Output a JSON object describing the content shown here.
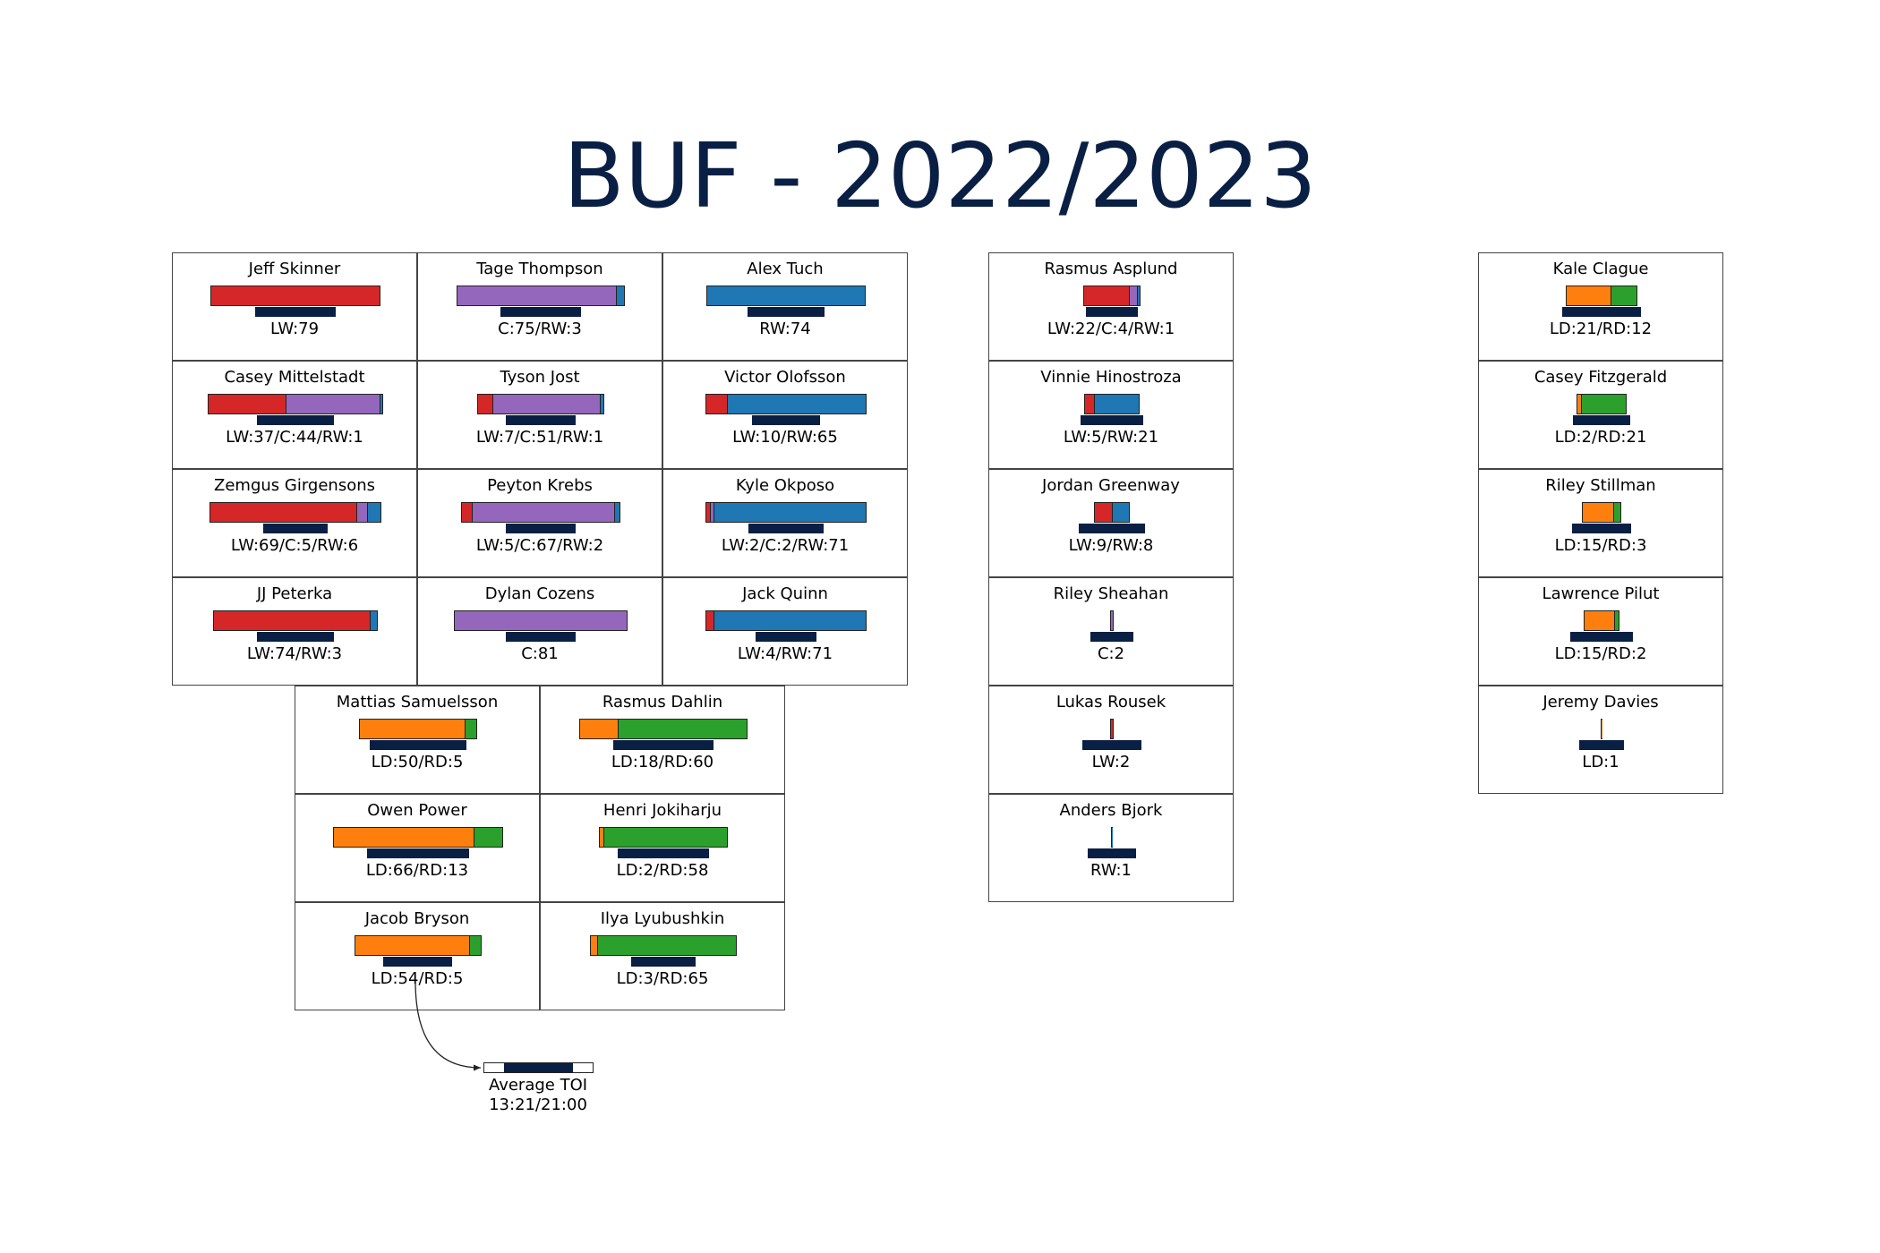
{
  "title": "BUF - 2022/2023",
  "colors": {
    "LW": "#d62728",
    "C": "#9467bd",
    "RW": "#1f77b4",
    "LD": "#ff7f0e",
    "RD": "#2ca02c",
    "toi": "#0a1f44",
    "title": "#0a1f44"
  },
  "scale": {
    "games_max": 82,
    "toi_min_minutes": 0,
    "toi_max_minutes": 21
  },
  "legend": {
    "label": "Average TOI",
    "range": "13:21/21:00",
    "toi_fill_start_minutes": 3.8,
    "toi_fill_end_minutes": 17.2
  },
  "groups": [
    {
      "name": "forwards",
      "players": [
        {
          "name": "Jeff Skinner",
          "stat": "LW:79",
          "positions": [
            [
              "LW",
              79
            ]
          ],
          "toi_minutes": 17.8
        },
        {
          "name": "Tage Thompson",
          "stat": "C:75/RW:3",
          "positions": [
            [
              "C",
              75
            ],
            [
              "RW",
              3
            ]
          ],
          "toi_minutes": 17.5
        },
        {
          "name": "Alex Tuch",
          "stat": "RW:74",
          "positions": [
            [
              "RW",
              74
            ]
          ],
          "toi_minutes": 17.0
        },
        {
          "name": "Casey Mittelstadt",
          "stat": "LW:37/C:44/RW:1",
          "positions": [
            [
              "LW",
              37
            ],
            [
              "C",
              44
            ],
            [
              "RW",
              1
            ]
          ],
          "toi_minutes": 17.0
        },
        {
          "name": "Tyson Jost",
          "stat": "LW:7/C:51/RW:1",
          "positions": [
            [
              "LW",
              7
            ],
            [
              "C",
              51
            ],
            [
              "RW",
              1
            ]
          ],
          "toi_minutes": 15.2
        },
        {
          "name": "Victor Olofsson",
          "stat": "LW:10/RW:65",
          "positions": [
            [
              "LW",
              10
            ],
            [
              "RW",
              65
            ]
          ],
          "toi_minutes": 14.9
        },
        {
          "name": "Zemgus Girgensons",
          "stat": "LW:69/C:5/RW:6",
          "positions": [
            [
              "LW",
              69
            ],
            [
              "C",
              5
            ],
            [
              "RW",
              6
            ]
          ],
          "toi_minutes": 14.1
        },
        {
          "name": "Peyton Krebs",
          "stat": "LW:5/C:67/RW:2",
          "positions": [
            [
              "LW",
              5
            ],
            [
              "C",
              67
            ],
            [
              "RW",
              2
            ]
          ],
          "toi_minutes": 15.4
        },
        {
          "name": "Kyle Okposo",
          "stat": "LW:2/C:2/RW:71",
          "positions": [
            [
              "LW",
              2
            ],
            [
              "C",
              2
            ],
            [
              "RW",
              71
            ]
          ],
          "toi_minutes": 16.3
        },
        {
          "name": "JJ Peterka",
          "stat": "LW:74/RW:3",
          "positions": [
            [
              "LW",
              74
            ],
            [
              "RW",
              3
            ]
          ],
          "toi_minutes": 17.0
        },
        {
          "name": "Dylan Cozens",
          "stat": "C:81",
          "positions": [
            [
              "C",
              81
            ]
          ],
          "toi_minutes": 15.4
        },
        {
          "name": "Jack Quinn",
          "stat": "LW:4/RW:71",
          "positions": [
            [
              "LW",
              4
            ],
            [
              "RW",
              71
            ]
          ],
          "toi_minutes": 13.4
        }
      ]
    },
    {
      "name": "defense",
      "players": [
        {
          "name": "Mattias Samuelsson",
          "stat": "LD:50/RD:5",
          "positions": [
            [
              "LD",
              50
            ],
            [
              "RD",
              5
            ]
          ],
          "toi_minutes": 21.0
        },
        {
          "name": "Rasmus Dahlin",
          "stat": "LD:18/RD:60",
          "positions": [
            [
              "LD",
              18
            ],
            [
              "RD",
              60
            ]
          ],
          "toi_minutes": 21.8
        },
        {
          "name": "Owen Power",
          "stat": "LD:66/RD:13",
          "positions": [
            [
              "LD",
              66
            ],
            [
              "RD",
              13
            ]
          ],
          "toi_minutes": 22.3
        },
        {
          "name": "Henri Jokiharju",
          "stat": "LD:2/RD:58",
          "positions": [
            [
              "LD",
              2
            ],
            [
              "RD",
              58
            ]
          ],
          "toi_minutes": 20.1
        },
        {
          "name": "Jacob Bryson",
          "stat": "LD:54/RD:5",
          "positions": [
            [
              "LD",
              54
            ],
            [
              "RD",
              5
            ]
          ],
          "toi_minutes": 15.1
        },
        {
          "name": "Ilya Lyubushkin",
          "stat": "LD:3/RD:65",
          "positions": [
            [
              "LD",
              3
            ],
            [
              "RD",
              65
            ]
          ],
          "toi_minutes": 14.3
        }
      ]
    },
    {
      "name": "extra-forwards",
      "players": [
        {
          "name": "Rasmus Asplund",
          "stat": "LW:22/C:4/RW:1",
          "positions": [
            [
              "LW",
              22
            ],
            [
              "C",
              4
            ],
            [
              "RW",
              1
            ]
          ],
          "toi_minutes": 11.2
        },
        {
          "name": "Vinnie Hinostroza",
          "stat": "LW:5/RW:21",
          "positions": [
            [
              "LW",
              5
            ],
            [
              "RW",
              21
            ]
          ],
          "toi_minutes": 13.8
        },
        {
          "name": "Jordan Greenway",
          "stat": "LW:9/RW:8",
          "positions": [
            [
              "LW",
              9
            ],
            [
              "RW",
              8
            ]
          ],
          "toi_minutes": 14.4
        },
        {
          "name": "Riley Sheahan",
          "stat": "C:2",
          "positions": [
            [
              "C",
              2
            ]
          ],
          "toi_minutes": 9.6
        },
        {
          "name": "Lukas Rousek",
          "stat": "LW:2",
          "positions": [
            [
              "LW",
              2
            ]
          ],
          "toi_minutes": 13.1
        },
        {
          "name": "Anders Bjork",
          "stat": "RW:1",
          "positions": [
            [
              "RW",
              1
            ]
          ],
          "toi_minutes": 10.4
        }
      ]
    },
    {
      "name": "extra-defense",
      "players": [
        {
          "name": "Kale Clague",
          "stat": "LD:21/RD:12",
          "positions": [
            [
              "LD",
              21
            ],
            [
              "RD",
              12
            ]
          ],
          "toi_minutes": 17.3
        },
        {
          "name": "Casey Fitzgerald",
          "stat": "LD:2/RD:21",
          "positions": [
            [
              "LD",
              2
            ],
            [
              "RD",
              21
            ]
          ],
          "toi_minutes": 12.7
        },
        {
          "name": "Riley Stillman",
          "stat": "LD:15/RD:3",
          "positions": [
            [
              "LD",
              15
            ],
            [
              "RD",
              3
            ]
          ],
          "toi_minutes": 13.1
        },
        {
          "name": "Lawrence Pilut",
          "stat": "LD:15/RD:2",
          "positions": [
            [
              "LD",
              15
            ],
            [
              "RD",
              2
            ]
          ],
          "toi_minutes": 13.6
        },
        {
          "name": "Jeremy Davies",
          "stat": "LD:1",
          "positions": [
            [
              "LD",
              1
            ]
          ],
          "toi_minutes": 9.9
        }
      ]
    }
  ]
}
